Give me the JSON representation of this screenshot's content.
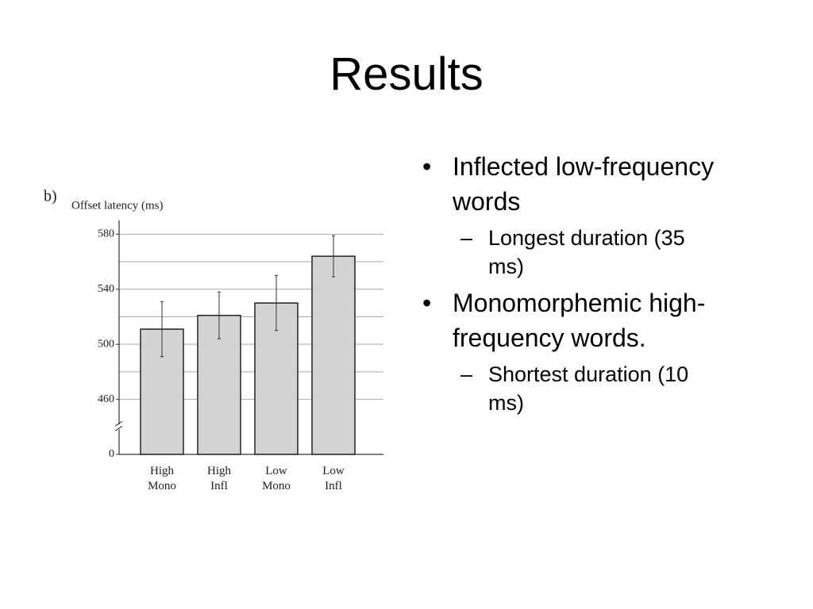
{
  "title": "Results",
  "bullets": [
    {
      "text": "Inflected low-frequency words",
      "sub": [
        "Longest duration (35 ms)"
      ]
    },
    {
      "text": "Monomorphemic high-frequency words.",
      "sub": [
        "Shortest duration (10 ms)"
      ]
    }
  ],
  "chart_data": {
    "type": "bar",
    "panel_label": "b)",
    "y_label": "Offset latency (ms)",
    "categories": [
      "High Mono",
      "High Infl",
      "Low Mono",
      "Low Infl"
    ],
    "values": [
      511,
      521,
      530,
      564
    ],
    "errors": [
      20,
      17,
      20,
      15
    ],
    "color": "#d3d3d3",
    "ylim": [
      0,
      590
    ],
    "yticks": [
      0,
      460,
      500,
      540,
      580
    ],
    "axis_break": true,
    "grid": true
  }
}
